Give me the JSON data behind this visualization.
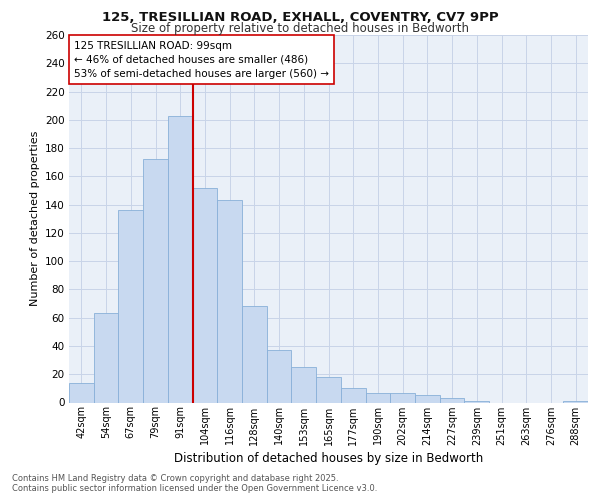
{
  "title1": "125, TRESILLIAN ROAD, EXHALL, COVENTRY, CV7 9PP",
  "title2": "Size of property relative to detached houses in Bedworth",
  "xlabel": "Distribution of detached houses by size in Bedworth",
  "ylabel": "Number of detached properties",
  "bar_labels": [
    "42sqm",
    "54sqm",
    "67sqm",
    "79sqm",
    "91sqm",
    "104sqm",
    "116sqm",
    "128sqm",
    "140sqm",
    "153sqm",
    "165sqm",
    "177sqm",
    "190sqm",
    "202sqm",
    "214sqm",
    "227sqm",
    "239sqm",
    "251sqm",
    "263sqm",
    "276sqm",
    "288sqm"
  ],
  "bar_values": [
    14,
    63,
    136,
    172,
    203,
    152,
    143,
    68,
    37,
    25,
    18,
    10,
    7,
    7,
    5,
    3,
    1,
    0,
    0,
    0,
    1
  ],
  "bar_color": "#c8d9f0",
  "bar_edge_color": "#88b0d8",
  "vline_color": "#cc0000",
  "annotation_text": "125 TRESILLIAN ROAD: 99sqm\n← 46% of detached houses are smaller (486)\n53% of semi-detached houses are larger (560) →",
  "annotation_box_color": "#ffffff",
  "annotation_box_edge": "#cc0000",
  "grid_color": "#c8d4e8",
  "plot_bg_color": "#eaf0f8",
  "ylim": [
    0,
    260
  ],
  "yticks": [
    0,
    20,
    40,
    60,
    80,
    100,
    120,
    140,
    160,
    180,
    200,
    220,
    240,
    260
  ],
  "footer_line1": "Contains HM Land Registry data © Crown copyright and database right 2025.",
  "footer_line2": "Contains public sector information licensed under the Open Government Licence v3.0."
}
